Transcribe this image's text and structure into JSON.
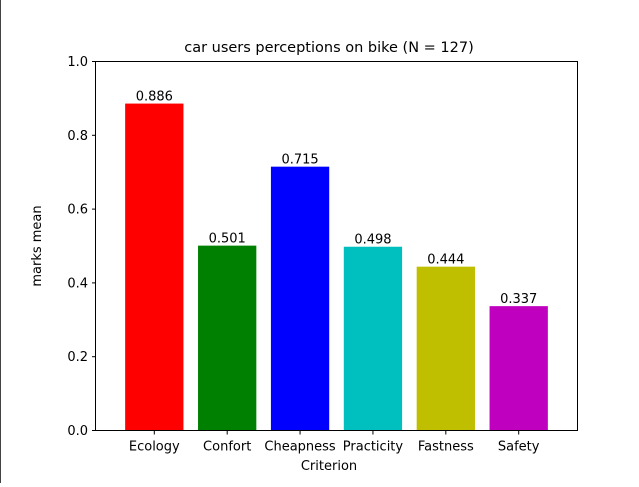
{
  "chart_data": {
    "type": "bar",
    "title": "car users perceptions on bike (N = 127)",
    "xlabel": "Criterion",
    "ylabel": "marks mean",
    "categories": [
      "Ecology",
      "Confort",
      "Cheapness",
      "Practicity",
      "Fastness",
      "Safety"
    ],
    "values": [
      0.886,
      0.501,
      0.715,
      0.498,
      0.444,
      0.337
    ],
    "value_labels": [
      "0.886",
      "0.501",
      "0.715",
      "0.498",
      "0.444",
      "0.337"
    ],
    "colors": [
      "#ff0000",
      "#008000",
      "#0000ff",
      "#00bfbf",
      "#bfbf00",
      "#bf00bf"
    ],
    "ylim": [
      0,
      1.0
    ],
    "yticks": [
      0.0,
      0.2,
      0.4,
      0.6,
      0.8,
      1.0
    ],
    "ytick_labels": [
      "0.0",
      "0.2",
      "0.4",
      "0.6",
      "0.8",
      "1.0"
    ],
    "grid": false,
    "legend": "none"
  }
}
